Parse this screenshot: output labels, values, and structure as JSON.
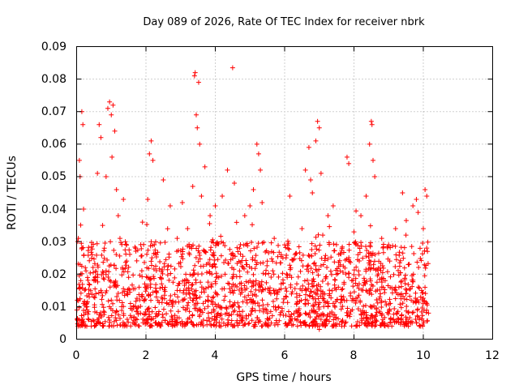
{
  "chart_data": {
    "type": "scatter",
    "title": "Day 089 of 2026, Rate Of TEC Index for receiver nbrk",
    "xlabel": "GPS time / hours",
    "ylabel": "ROTI / TECUs",
    "xlim": [
      0,
      12
    ],
    "ylim": [
      0,
      0.09
    ],
    "x_ticks": [
      "0",
      "2",
      "4",
      "6",
      "8",
      "10",
      "12"
    ],
    "y_ticks": [
      "0",
      "0.01",
      "0.02",
      "0.03",
      "0.04",
      "0.05",
      "0.06",
      "0.07",
      "0.08",
      "0.09"
    ],
    "grid": true,
    "marker": "+",
    "color": "#ff0000",
    "series": [
      {
        "name": "ROTI",
        "points": [
          [
            0.02,
            0.012
          ],
          [
            0.05,
            0.031
          ],
          [
            0.08,
            0.055
          ],
          [
            0.1,
            0.05
          ],
          [
            0.12,
            0.018
          ],
          [
            0.15,
            0.07
          ],
          [
            0.18,
            0.066
          ],
          [
            0.2,
            0.04
          ],
          [
            0.25,
            0.022
          ],
          [
            0.3,
            0.009
          ],
          [
            0.45,
            0.026
          ],
          [
            0.5,
            0.013
          ],
          [
            0.6,
            0.051
          ],
          [
            0.65,
            0.066
          ],
          [
            0.7,
            0.062
          ],
          [
            0.75,
            0.035
          ],
          [
            0.8,
            0.028
          ],
          [
            0.85,
            0.05
          ],
          [
            0.9,
            0.071
          ],
          [
            0.95,
            0.073
          ],
          [
            1.0,
            0.069
          ],
          [
            1.02,
            0.056
          ],
          [
            1.05,
            0.072
          ],
          [
            1.1,
            0.064
          ],
          [
            1.15,
            0.046
          ],
          [
            1.2,
            0.038
          ],
          [
            1.25,
            0.031
          ],
          [
            1.35,
            0.043
          ],
          [
            1.5,
            0.019
          ],
          [
            1.7,
            0.028
          ],
          [
            1.9,
            0.036
          ],
          [
            2.05,
            0.043
          ],
          [
            2.1,
            0.057
          ],
          [
            2.15,
            0.061
          ],
          [
            2.2,
            0.055
          ],
          [
            2.3,
            0.026
          ],
          [
            2.5,
            0.049
          ],
          [
            2.7,
            0.041
          ],
          [
            2.9,
            0.031
          ],
          [
            3.05,
            0.042
          ],
          [
            3.2,
            0.034
          ],
          [
            3.35,
            0.047
          ],
          [
            3.4,
            0.081
          ],
          [
            3.42,
            0.082
          ],
          [
            3.45,
            0.069
          ],
          [
            3.48,
            0.065
          ],
          [
            3.52,
            0.079
          ],
          [
            3.55,
            0.06
          ],
          [
            3.6,
            0.044
          ],
          [
            3.7,
            0.053
          ],
          [
            3.85,
            0.038
          ],
          [
            4.0,
            0.041
          ],
          [
            4.2,
            0.044
          ],
          [
            4.35,
            0.052
          ],
          [
            4.5,
            0.0835
          ],
          [
            4.55,
            0.048
          ],
          [
            4.7,
            0.028
          ],
          [
            4.85,
            0.038
          ],
          [
            5.0,
            0.041
          ],
          [
            5.1,
            0.046
          ],
          [
            5.2,
            0.06
          ],
          [
            5.25,
            0.057
          ],
          [
            5.3,
            0.052
          ],
          [
            5.35,
            0.042
          ],
          [
            5.5,
            0.024
          ],
          [
            5.7,
            0.031
          ],
          [
            5.9,
            0.026
          ],
          [
            6.0,
            0.029
          ],
          [
            6.15,
            0.044
          ],
          [
            6.3,
            0.026
          ],
          [
            6.5,
            0.034
          ],
          [
            6.6,
            0.052
          ],
          [
            6.7,
            0.059
          ],
          [
            6.75,
            0.049
          ],
          [
            6.8,
            0.045
          ],
          [
            6.9,
            0.061
          ],
          [
            6.95,
            0.067
          ],
          [
            7.0,
            0.065
          ],
          [
            7.05,
            0.051
          ],
          [
            7.1,
            0.032
          ],
          [
            7.25,
            0.038
          ],
          [
            7.4,
            0.041
          ],
          [
            7.6,
            0.021
          ],
          [
            7.8,
            0.056
          ],
          [
            7.85,
            0.054
          ],
          [
            8.0,
            0.033
          ],
          [
            8.2,
            0.038
          ],
          [
            8.35,
            0.044
          ],
          [
            8.45,
            0.06
          ],
          [
            8.5,
            0.067
          ],
          [
            8.52,
            0.066
          ],
          [
            8.55,
            0.055
          ],
          [
            8.6,
            0.05
          ],
          [
            8.8,
            0.031
          ],
          [
            9.0,
            0.029
          ],
          [
            9.2,
            0.034
          ],
          [
            9.4,
            0.045
          ],
          [
            9.5,
            0.032
          ],
          [
            9.7,
            0.041
          ],
          [
            9.8,
            0.043
          ],
          [
            9.85,
            0.039
          ],
          [
            10.0,
            0.034
          ],
          [
            10.05,
            0.046
          ],
          [
            10.1,
            0.044
          ],
          [
            10.12,
            0.027
          ],
          [
            0.1,
            0.016
          ],
          [
            0.2,
            0.011
          ],
          [
            0.35,
            0.014
          ],
          [
            0.5,
            0.018
          ],
          [
            0.6,
            0.006
          ],
          [
            0.7,
            0.015
          ],
          [
            0.85,
            0.021
          ],
          [
            1.0,
            0.012
          ],
          [
            1.1,
            0.017
          ],
          [
            1.3,
            0.01
          ],
          [
            1.45,
            0.014
          ],
          [
            1.6,
            0.009
          ],
          [
            1.8,
            0.016
          ],
          [
            1.95,
            0.012
          ],
          [
            2.1,
            0.007
          ],
          [
            2.3,
            0.013
          ],
          [
            2.45,
            0.017
          ],
          [
            2.6,
            0.011
          ],
          [
            2.75,
            0.006
          ],
          [
            2.9,
            0.015
          ],
          [
            3.05,
            0.012
          ],
          [
            3.2,
            0.018
          ],
          [
            3.35,
            0.014
          ],
          [
            3.5,
            0.02
          ],
          [
            3.65,
            0.011
          ],
          [
            3.8,
            0.016
          ],
          [
            3.95,
            0.013
          ],
          [
            4.1,
            0.019
          ],
          [
            4.25,
            0.012
          ],
          [
            4.4,
            0.017
          ],
          [
            4.55,
            0.015
          ],
          [
            4.7,
            0.021
          ],
          [
            4.85,
            0.013
          ],
          [
            5.0,
            0.018
          ],
          [
            5.15,
            0.011
          ],
          [
            5.3,
            0.016
          ],
          [
            5.45,
            0.02
          ],
          [
            5.6,
            0.014
          ],
          [
            5.75,
            0.009
          ],
          [
            5.9,
            0.017
          ],
          [
            6.05,
            0.013
          ],
          [
            6.2,
            0.019
          ],
          [
            6.35,
            0.011
          ],
          [
            6.5,
            0.015
          ],
          [
            6.65,
            0.012
          ],
          [
            6.8,
            0.018
          ],
          [
            6.95,
            0.004
          ],
          [
            7.0,
            0.003
          ],
          [
            7.1,
            0.014
          ],
          [
            7.25,
            0.017
          ],
          [
            7.4,
            0.011
          ],
          [
            7.55,
            0.016
          ],
          [
            7.7,
            0.013
          ],
          [
            7.85,
            0.019
          ],
          [
            8.0,
            0.012
          ],
          [
            8.15,
            0.017
          ],
          [
            8.3,
            0.008
          ],
          [
            8.45,
            0.015
          ],
          [
            8.6,
            0.004
          ],
          [
            8.75,
            0.013
          ],
          [
            8.9,
            0.018
          ],
          [
            9.05,
            0.011
          ],
          [
            9.2,
            0.016
          ],
          [
            9.35,
            0.006
          ],
          [
            9.5,
            0.014
          ],
          [
            9.65,
            0.012
          ],
          [
            9.8,
            0.005
          ],
          [
            9.95,
            0.015
          ],
          [
            10.1,
            0.011
          ],
          [
            10.15,
            0.008
          ]
        ]
      }
    ]
  }
}
